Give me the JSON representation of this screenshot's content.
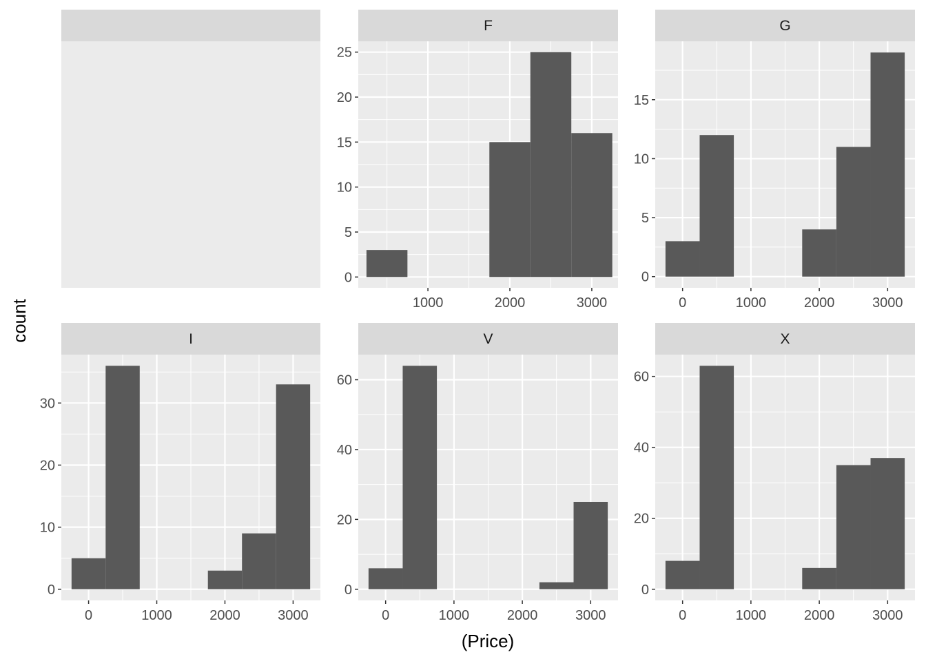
{
  "chart_data": {
    "type": "bar",
    "subtype": "faceted-histogram",
    "xlabel": "(Price)",
    "ylabel": "count",
    "bin_width": 500,
    "grid": true,
    "panels": [
      {
        "strip": "",
        "empty": true
      },
      {
        "strip": "F",
        "xlim": [
          150,
          3320
        ],
        "ylim": [
          -1.2,
          26.2
        ],
        "xticks": [
          1000,
          2000,
          3000
        ],
        "yticks": [
          0,
          5,
          10,
          15,
          20,
          25
        ],
        "bins": [
          {
            "x0": 250,
            "x1": 750,
            "count": 3
          },
          {
            "x0": 1750,
            "x1": 2250,
            "count": 15
          },
          {
            "x0": 2250,
            "x1": 2750,
            "count": 25
          },
          {
            "x0": 2750,
            "x1": 3250,
            "count": 16
          }
        ]
      },
      {
        "strip": "G",
        "xlim": [
          -400,
          3400
        ],
        "ylim": [
          -0.95,
          19.95
        ],
        "xticks": [
          0,
          1000,
          2000,
          3000
        ],
        "yticks": [
          0,
          5,
          10,
          15
        ],
        "bins": [
          {
            "x0": -250,
            "x1": 250,
            "count": 3
          },
          {
            "x0": 250,
            "x1": 750,
            "count": 12
          },
          {
            "x0": 1750,
            "x1": 2250,
            "count": 4
          },
          {
            "x0": 2250,
            "x1": 2750,
            "count": 11
          },
          {
            "x0": 2750,
            "x1": 3250,
            "count": 19
          }
        ]
      },
      {
        "strip": "I",
        "xlim": [
          -400,
          3400
        ],
        "ylim": [
          -1.8,
          37.8
        ],
        "xticks": [
          0,
          1000,
          2000,
          3000
        ],
        "yticks": [
          0,
          10,
          20,
          30
        ],
        "bins": [
          {
            "x0": -250,
            "x1": 250,
            "count": 5
          },
          {
            "x0": 250,
            "x1": 750,
            "count": 36
          },
          {
            "x0": 1750,
            "x1": 2250,
            "count": 3
          },
          {
            "x0": 2250,
            "x1": 2750,
            "count": 9
          },
          {
            "x0": 2750,
            "x1": 3250,
            "count": 33
          }
        ]
      },
      {
        "strip": "V",
        "xlim": [
          -400,
          3400
        ],
        "ylim": [
          -3.2,
          67.2
        ],
        "xticks": [
          0,
          1000,
          2000,
          3000
        ],
        "yticks": [
          0,
          20,
          40,
          60
        ],
        "bins": [
          {
            "x0": -250,
            "x1": 250,
            "count": 6
          },
          {
            "x0": 250,
            "x1": 750,
            "count": 64
          },
          {
            "x0": 2250,
            "x1": 2750,
            "count": 2
          },
          {
            "x0": 2750,
            "x1": 3250,
            "count": 25
          }
        ]
      },
      {
        "strip": "X",
        "xlim": [
          -400,
          3400
        ],
        "ylim": [
          -3.15,
          66.15
        ],
        "xticks": [
          0,
          1000,
          2000,
          3000
        ],
        "yticks": [
          0,
          20,
          40,
          60
        ],
        "bins": [
          {
            "x0": -250,
            "x1": 250,
            "count": 8
          },
          {
            "x0": 250,
            "x1": 750,
            "count": 63
          },
          {
            "x0": 1750,
            "x1": 2250,
            "count": 6
          },
          {
            "x0": 2250,
            "x1": 2750,
            "count": 35
          },
          {
            "x0": 2750,
            "x1": 3250,
            "count": 37
          }
        ]
      }
    ]
  },
  "colors": {
    "panel_background": "#ebebeb",
    "strip_background": "#d9d9d9",
    "grid_line": "#ffffff",
    "bar_fill": "#595959",
    "tick_mark": "#333333",
    "tick_text": "#4d4d4d"
  }
}
